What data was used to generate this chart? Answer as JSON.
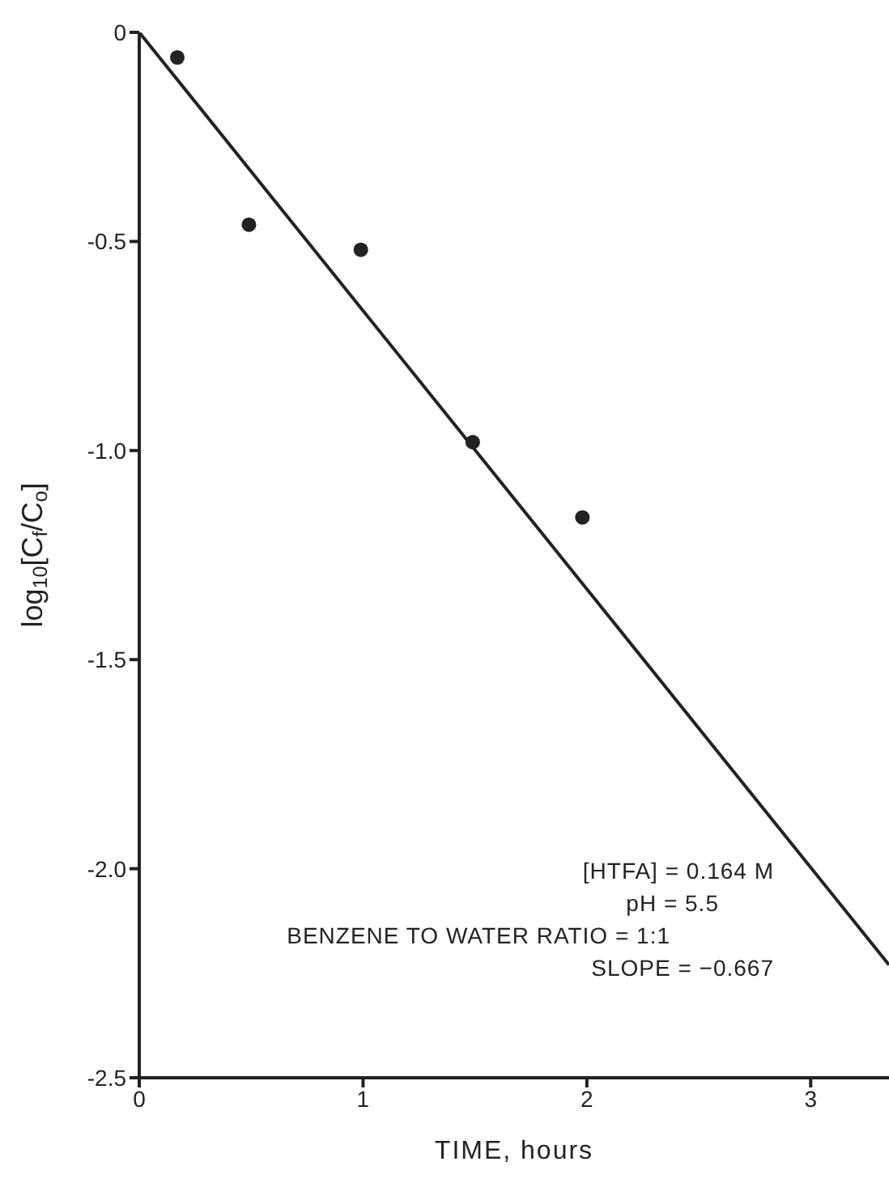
{
  "chart_data": {
    "type": "scatter",
    "xlabel": "TIME, hours",
    "ylabel": "log$_{10}$[C$_{f}$/C$_{o}$]",
    "xlim": [
      0,
      3.35
    ],
    "xticks": [
      0,
      1,
      2,
      3
    ],
    "ylim": [
      -2.5,
      0
    ],
    "yticks": [
      {
        "value": -2.5,
        "label": "-2.5"
      },
      {
        "value": -2,
        "label": "-2.0"
      },
      {
        "value": -1.5,
        "label": "-1.5"
      },
      {
        "value": -1,
        "label": "-1.0"
      },
      {
        "value": -0.5,
        "label": "-0.5"
      },
      {
        "value": 0,
        "label": "0"
      }
    ],
    "grid": false,
    "series": [
      {
        "color": "#222222",
        "marker": "circle",
        "x": [
          0.17,
          0.49,
          0.99,
          1.49,
          1.98
        ],
        "values": [
          -0.06,
          -0.46,
          -0.52,
          -0.98,
          -1.16
        ]
      },
      {
        "type": "line",
        "color": "#222222",
        "marker": "none",
        "line_style": "solid",
        "x": [
          0,
          3.35
        ],
        "values": [
          0,
          -2.23
        ]
      }
    ],
    "annotations": [
      "[HTFA] = 0.164 M",
      "pH = 5.5",
      "BENZENE TO WATER RATIO = 1:1",
      "SLOPE = −0.667"
    ]
  }
}
